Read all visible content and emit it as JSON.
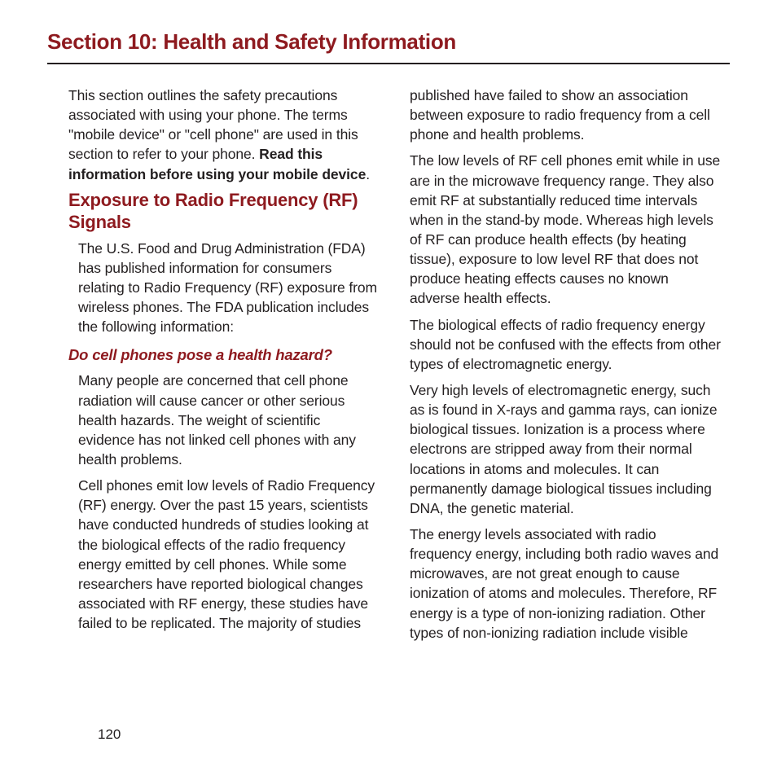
{
  "colors": {
    "heading": "#8e1a1f",
    "text": "#231f20",
    "background": "#ffffff",
    "rule": "#231f20"
  },
  "typography": {
    "title_size_pt": 26,
    "subtitle_size_pt": 22,
    "question_size_pt": 18.5,
    "body_size_pt": 17.5,
    "body_line_height": 1.38
  },
  "section_title": "Section 10: Health and Safety Information",
  "left": {
    "intro_plain": "This section outlines the safety precautions associated with using your phone. The terms \"mobile device\" or \"cell phone\" are used in this section to refer to your phone. ",
    "intro_bold": "Read this information before using your mobile device",
    "intro_tail": ".",
    "sub_title": "Exposure to Radio Frequency (RF) Signals",
    "p1": "The U.S. Food and Drug Administration (FDA) has published information for consumers relating to Radio Frequency (RF) exposure from wireless phones. The FDA publication includes the following information:",
    "question": "Do cell phones pose a health hazard?",
    "p2": "Many people are concerned that cell phone radiation will cause cancer or other serious health hazards. The weight of scientific evidence has not linked cell phones with any health problems.",
    "p3": "Cell phones emit low levels of Radio Frequency (RF) energy. Over the past 15 years, scientists have conducted hundreds of studies looking at the biological effects of the radio frequency energy emitted by cell phones. While some researchers have reported biological changes associated with RF energy, these studies have failed to be replicated. The majority of studies"
  },
  "right": {
    "p1": "published have failed to show an association between exposure to radio frequency from a cell phone and health problems.",
    "p2": "The low levels of RF cell phones emit while in use are in the microwave frequency range. They also emit RF at substantially reduced time intervals when in the stand-by mode. Whereas high levels of RF can produce health effects (by heating tissue), exposure to low level RF that does not produce heating effects causes no known adverse health effects.",
    "p3": "The biological effects of radio frequency energy should not be confused with the effects from other types of electromagnetic energy.",
    "p4": "Very high levels of electromagnetic energy, such as is found in X-rays and gamma rays, can ionize biological tissues. Ionization is a process where electrons are stripped away from their normal locations in atoms and molecules. It can permanently damage biological tissues including DNA, the genetic material.",
    "p5": "The energy levels associated with radio frequency energy, including both radio waves and microwaves, are not great enough to cause ionization of atoms and molecules. Therefore, RF energy is a type of non-ionizing radiation. Other types of non-ionizing radiation include visible"
  },
  "page_number": "120"
}
